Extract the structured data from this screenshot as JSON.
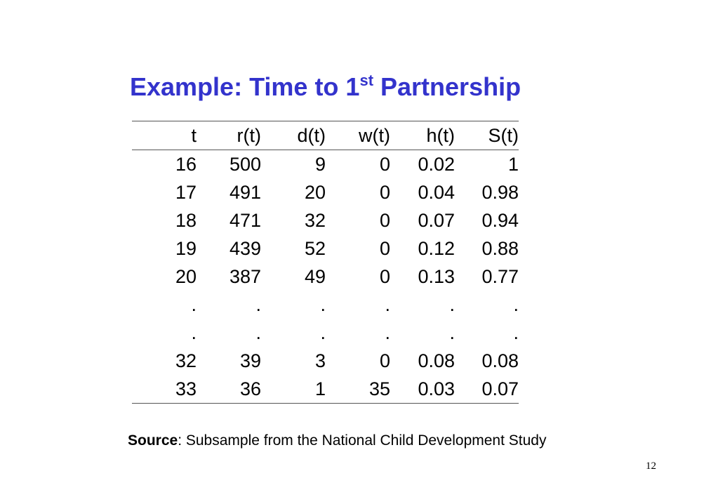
{
  "slide": {
    "title_main": "Example: Time to 1",
    "title_sup": "st",
    "title_end": " Partnership",
    "page_number": "12"
  },
  "table": {
    "headers": [
      "t",
      "r(t)",
      "d(t)",
      "w(t)",
      "h(t)",
      "S(t)"
    ],
    "rows": [
      [
        "16",
        "500",
        "9",
        "0",
        "0.02",
        "1"
      ],
      [
        "17",
        "491",
        "20",
        "0",
        "0.04",
        "0.98"
      ],
      [
        "18",
        "471",
        "32",
        "0",
        "0.07",
        "0.94"
      ],
      [
        "19",
        "439",
        "52",
        "0",
        "0.12",
        "0.88"
      ],
      [
        "20",
        "387",
        "49",
        "0",
        "0.13",
        "0.77"
      ],
      [
        ".",
        ".",
        ".",
        ".",
        ".",
        "."
      ],
      [
        ".",
        ".",
        ".",
        ".",
        ".",
        "."
      ],
      [
        "32",
        "39",
        "3",
        "0",
        "0.08",
        "0.08"
      ],
      [
        "33",
        "36",
        "1",
        "35",
        "0.03",
        "0.07"
      ]
    ]
  },
  "source": {
    "label": "Source",
    "text": ": Subsample from the National Child Development Study"
  },
  "colors": {
    "title": "#3333cc",
    "rule": "#555555"
  }
}
